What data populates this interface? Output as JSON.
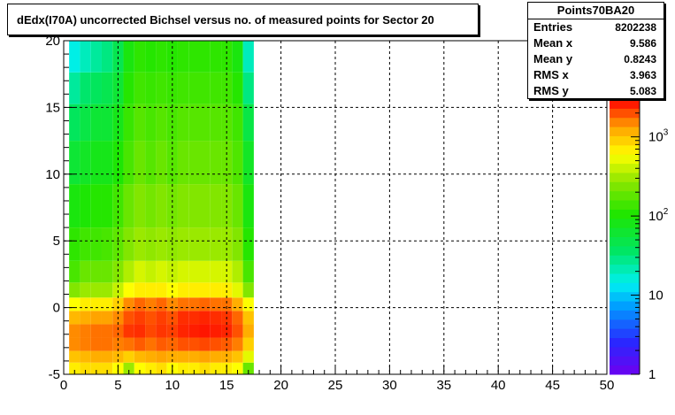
{
  "stats": {
    "name": "Points70BA20",
    "rows": [
      {
        "label": "Entries",
        "value": "8202238"
      },
      {
        "label": "Mean x",
        "value": "9.586"
      },
      {
        "label": "Mean y",
        "value": "0.8243"
      },
      {
        "label": "RMS x",
        "value": "3.963"
      },
      {
        "label": "RMS y",
        "value": "5.083"
      }
    ]
  },
  "chart_data": {
    "type": "heatmap",
    "title": "dEdx(I70A) uncorrected Bichsel versus no. of measured points for Sector 20",
    "xlim": [
      0,
      50
    ],
    "ylim": [
      -5,
      20
    ],
    "xticks": [
      0,
      5,
      10,
      15,
      20,
      25,
      30,
      35,
      40,
      45,
      50
    ],
    "yticks": [
      -5,
      0,
      5,
      10,
      15,
      20
    ],
    "grid": true,
    "colorbar": {
      "scale": "log",
      "range": [
        1,
        3000
      ],
      "ticks": [
        {
          "value": 1,
          "label": "1"
        },
        {
          "value": 10,
          "label": "10"
        },
        {
          "value": 100,
          "label": "10",
          "exp": "2"
        },
        {
          "value": 1000,
          "label": "10",
          "exp": "3"
        }
      ]
    },
    "x_bins": [
      1,
      2,
      3,
      4,
      5,
      6,
      7,
      8,
      9,
      10,
      11,
      12,
      13,
      14,
      15,
      16,
      17
    ],
    "x_bin_width": 1,
    "y_bin_width": 0.5,
    "y_rows": [
      {
        "y": -4.5,
        "values": [
          700,
          800,
          800,
          800,
          600,
          300,
          600,
          700,
          800,
          600,
          700,
          700,
          800,
          700,
          700,
          600,
          200
        ]
      },
      {
        "y": -3.75,
        "values": [
          1000,
          1100,
          1200,
          1200,
          1100,
          900,
          1100,
          1200,
          1300,
          1200,
          1200,
          1200,
          1300,
          1200,
          1200,
          1000,
          500
        ]
      },
      {
        "y": -2.75,
        "values": [
          1500,
          1600,
          1700,
          1700,
          1600,
          1700,
          1900,
          1700,
          1900,
          1800,
          2000,
          2000,
          2100,
          2000,
          1900,
          1600,
          900
        ]
      },
      {
        "y": -1.75,
        "values": [
          1500,
          1600,
          1700,
          1700,
          1800,
          2300,
          2400,
          2100,
          2300,
          2200,
          2500,
          2600,
          2700,
          2600,
          2500,
          2000,
          1200
        ]
      },
      {
        "y": -0.75,
        "values": [
          1100,
          1200,
          1300,
          1300,
          1500,
          2000,
          2200,
          2000,
          2200,
          2000,
          2400,
          2400,
          2500,
          2400,
          2300,
          1800,
          1000
        ]
      },
      {
        "y": 0.25,
        "values": [
          600,
          700,
          700,
          700,
          900,
          1500,
          1800,
          1600,
          1800,
          1500,
          1700,
          1700,
          1800,
          1700,
          1700,
          1200,
          600
        ]
      },
      {
        "y": 1.25,
        "values": [
          250,
          300,
          300,
          300,
          400,
          600,
          700,
          700,
          700,
          600,
          700,
          700,
          700,
          700,
          700,
          500,
          250
        ]
      },
      {
        "y": 2.5,
        "values": [
          150,
          200,
          200,
          200,
          250,
          350,
          450,
          400,
          450,
          400,
          450,
          450,
          450,
          450,
          450,
          350,
          150
        ]
      },
      {
        "y": 4.5,
        "values": [
          120,
          140,
          140,
          150,
          180,
          250,
          300,
          280,
          300,
          280,
          300,
          300,
          300,
          300,
          300,
          250,
          110
        ]
      },
      {
        "y": 7.5,
        "values": [
          90,
          100,
          110,
          110,
          140,
          200,
          250,
          220,
          250,
          220,
          250,
          250,
          250,
          250,
          250,
          200,
          90
        ]
      },
      {
        "y": 11,
        "values": [
          60,
          70,
          80,
          80,
          100,
          150,
          200,
          170,
          200,
          170,
          200,
          200,
          200,
          200,
          200,
          160,
          70
        ]
      },
      {
        "y": 14,
        "values": [
          40,
          50,
          60,
          60,
          80,
          130,
          170,
          150,
          170,
          150,
          170,
          170,
          170,
          170,
          170,
          140,
          50
        ]
      },
      {
        "y": 16.5,
        "values": [
          25,
          35,
          40,
          45,
          60,
          110,
          140,
          130,
          140,
          130,
          140,
          140,
          140,
          140,
          140,
          110,
          30
        ]
      },
      {
        "y": 18.75,
        "values": [
          15,
          20,
          25,
          30,
          45,
          90,
          120,
          110,
          120,
          110,
          120,
          120,
          120,
          120,
          120,
          90,
          20
        ]
      }
    ]
  }
}
